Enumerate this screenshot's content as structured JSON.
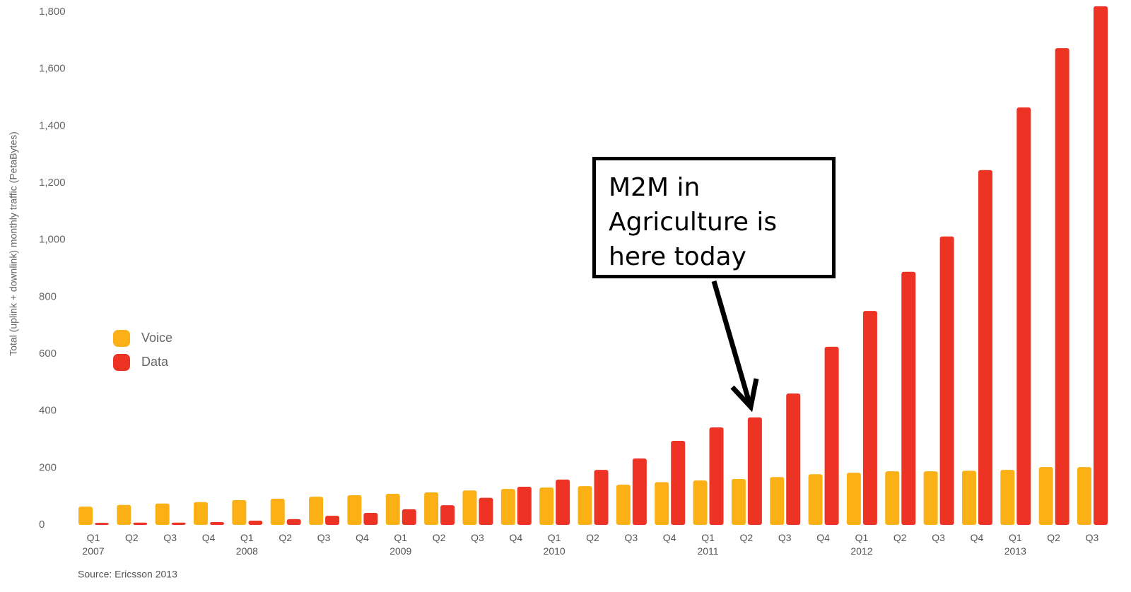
{
  "chart_data": {
    "type": "bar",
    "y_label": "Total (uplink + downlink) monthly traffic (PetaBytes)",
    "source": "Source: Ericsson 2013",
    "annotation": "M2M in\nAgriculture is\nhere today",
    "categories": [
      "Q1\n2007",
      "Q2",
      "Q3",
      "Q4",
      "Q1\n2008",
      "Q2",
      "Q3",
      "Q4",
      "Q1\n2009",
      "Q2",
      "Q3",
      "Q4",
      "Q1\n2010",
      "Q2",
      "Q3",
      "Q4",
      "Q1\n2011",
      "Q2",
      "Q3",
      "Q4",
      "Q1\n2012",
      "Q2",
      "Q3",
      "Q4",
      "Q1\n2013",
      "Q2",
      "Q3"
    ],
    "series": [
      {
        "name": "Voice",
        "color": "#fbb116",
        "values": [
          64,
          70,
          75,
          80,
          87,
          92,
          99,
          104,
          109,
          114,
          121,
          126,
          131,
          136,
          141,
          150,
          156,
          161,
          168,
          178,
          183,
          188,
          188,
          190,
          193,
          203,
          203
        ]
      },
      {
        "name": "Data",
        "color": "#ec3324",
        "values": [
          7,
          8,
          8,
          10,
          15,
          20,
          32,
          42,
          55,
          69,
          95,
          134,
          159,
          193,
          233,
          295,
          342,
          377,
          461,
          625,
          751,
          888,
          1012,
          1245,
          1465,
          1673,
          1820
        ]
      }
    ],
    "ylim": [
      0,
      1842
    ],
    "yticks": [
      0,
      200,
      400,
      600,
      800,
      {
        "value": 1000,
        "label": "1,000"
      },
      {
        "value": 1200,
        "label": "1,200"
      },
      {
        "value": 1400,
        "label": "1,400"
      },
      {
        "value": 1600,
        "label": "1,600"
      },
      {
        "value": 1800,
        "label": "1,800"
      }
    ],
    "legend": "left"
  }
}
